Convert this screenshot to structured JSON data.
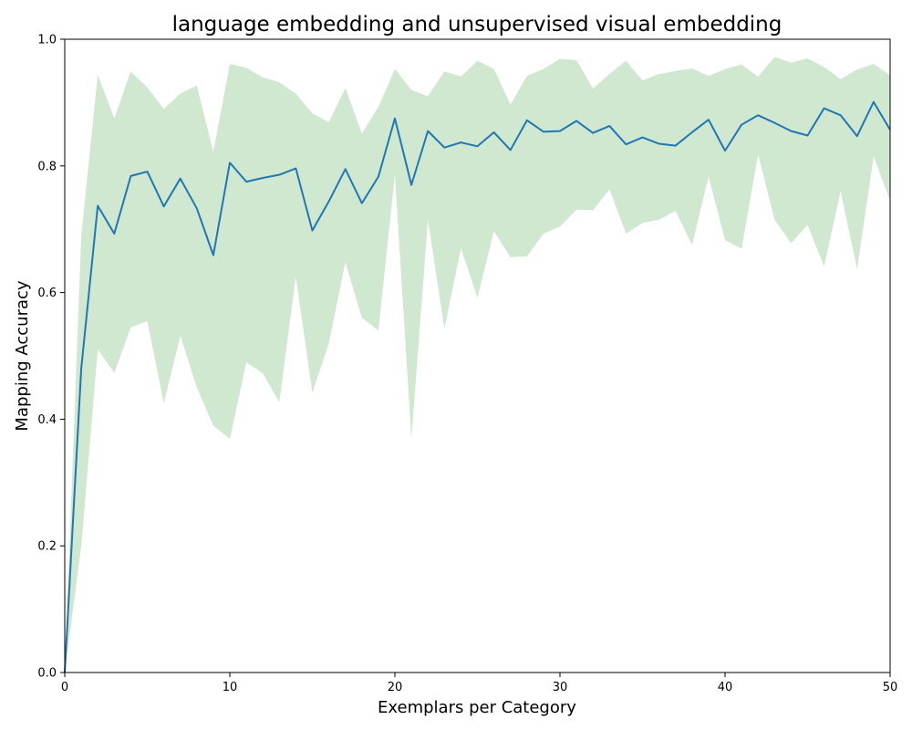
{
  "chart_data": {
    "type": "line",
    "title": "language embedding and unsupervised visual embedding",
    "xlabel": "Exemplars per Category",
    "ylabel": "Mapping Accuracy",
    "xlim": [
      0,
      50
    ],
    "ylim": [
      0,
      1.0
    ],
    "xticks": [
      "0",
      "10",
      "20",
      "30",
      "40",
      "50"
    ],
    "yticks": [
      "0.0",
      "0.2",
      "0.4",
      "0.6",
      "0.8",
      "1.0"
    ],
    "grid": false,
    "line_color": "#1f77b4",
    "band_color": "#a8d5a8",
    "x": [
      0,
      1,
      2,
      3,
      4,
      5,
      6,
      7,
      8,
      9,
      10,
      11,
      12,
      13,
      14,
      15,
      16,
      17,
      18,
      19,
      20,
      21,
      22,
      23,
      24,
      25,
      26,
      27,
      28,
      29,
      30,
      31,
      32,
      33,
      34,
      35,
      36,
      37,
      38,
      39,
      40,
      41,
      42,
      43,
      44,
      45,
      46,
      47,
      48,
      49,
      50
    ],
    "series": [
      {
        "values": [
          0.0,
          0.48,
          0.737,
          0.693,
          0.784,
          0.791,
          0.736,
          0.78,
          0.733,
          0.659,
          0.805,
          0.775,
          0.781,
          0.786,
          0.796,
          0.698,
          0.744,
          0.795,
          0.741,
          0.783,
          0.875,
          0.77,
          0.855,
          0.829,
          0.837,
          0.831,
          0.853,
          0.825,
          0.872,
          0.854,
          0.855,
          0.871,
          0.852,
          0.863,
          0.834,
          0.845,
          0.835,
          0.832,
          0.853,
          0.873,
          0.824,
          0.865,
          0.88,
          0.868,
          0.855,
          0.848,
          0.891,
          0.88,
          0.847,
          0.901,
          0.857
        ],
        "lower": [
          0.0,
          0.2,
          0.51,
          0.473,
          0.545,
          0.555,
          0.425,
          0.532,
          0.45,
          0.39,
          0.369,
          0.49,
          0.472,
          0.427,
          0.625,
          0.442,
          0.52,
          0.648,
          0.56,
          0.54,
          0.786,
          0.37,
          0.715,
          0.543,
          0.67,
          0.592,
          0.697,
          0.656,
          0.657,
          0.693,
          0.704,
          0.731,
          0.73,
          0.763,
          0.693,
          0.71,
          0.715,
          0.729,
          0.675,
          0.783,
          0.683,
          0.669,
          0.818,
          0.715,
          0.678,
          0.707,
          0.641,
          0.76,
          0.637,
          0.815,
          0.745
        ],
        "upper": [
          0.0,
          0.69,
          0.944,
          0.875,
          0.949,
          0.924,
          0.89,
          0.914,
          0.927,
          0.822,
          0.961,
          0.955,
          0.94,
          0.932,
          0.914,
          0.883,
          0.869,
          0.923,
          0.851,
          0.893,
          0.953,
          0.92,
          0.91,
          0.949,
          0.941,
          0.966,
          0.953,
          0.897,
          0.942,
          0.953,
          0.969,
          0.967,
          0.922,
          0.945,
          0.966,
          0.935,
          0.945,
          0.95,
          0.954,
          0.942,
          0.953,
          0.96,
          0.941,
          0.972,
          0.963,
          0.97,
          0.956,
          0.937,
          0.952,
          0.961,
          0.943
        ]
      }
    ]
  }
}
